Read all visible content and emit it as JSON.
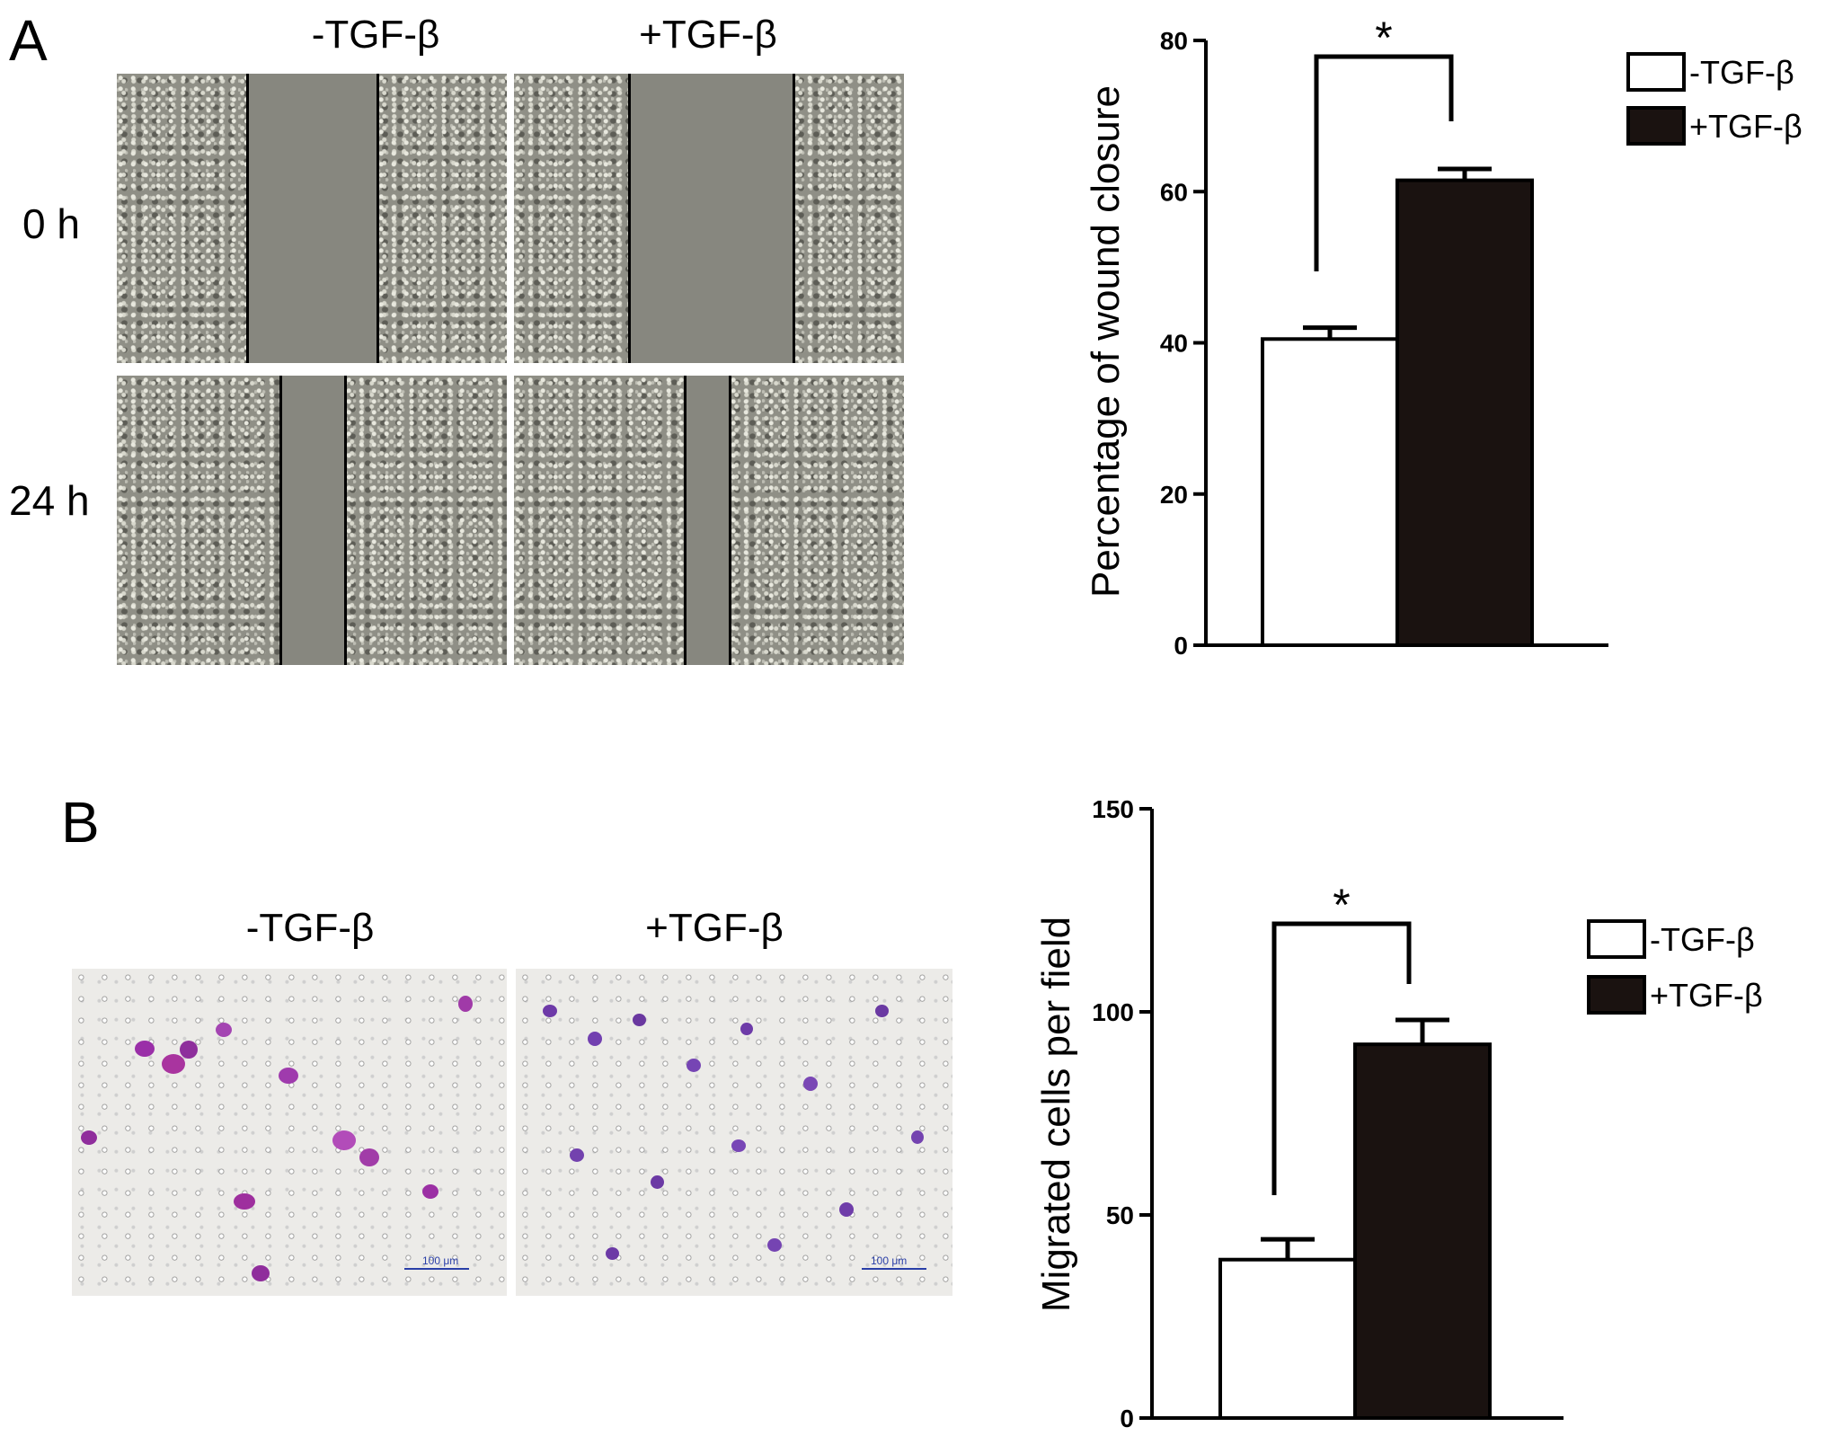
{
  "panels": [
    {
      "letter": "A",
      "columns": [
        "-TGF-β",
        "+TGF-β"
      ],
      "rows": [
        "0 h",
        "24 h"
      ]
    },
    {
      "letter": "B",
      "columns": [
        "-TGF-β",
        "+TGF-β"
      ],
      "scale_labels": [
        "100 μm",
        "100 μm"
      ]
    }
  ],
  "chart_data": [
    {
      "type": "bar",
      "categories": [
        "-TGF-β",
        "+TGF-β"
      ],
      "values": [
        40.5,
        61.5
      ],
      "errors": [
        1.5,
        1.5
      ],
      "colors": [
        "#ffffff",
        "#1a1210"
      ],
      "ylabel": "Percentage of wound closure",
      "xlabel": "",
      "ylim": [
        0,
        80
      ],
      "yticks": [
        0,
        20,
        40,
        60,
        80
      ],
      "legend": [
        "-TGF-β",
        "+TGF-β"
      ],
      "legend_position": "top-right",
      "significance": "*",
      "grid": false
    },
    {
      "type": "bar",
      "categories": [
        "-TGF-β",
        "+TGF-β"
      ],
      "values": [
        39,
        92
      ],
      "errors": [
        5,
        6
      ],
      "colors": [
        "#ffffff",
        "#1a1210"
      ],
      "ylabel": "Migrated cells per field",
      "xlabel": "",
      "ylim": [
        0,
        150
      ],
      "yticks": [
        0,
        50,
        100,
        150
      ],
      "legend": [
        "-TGF-β",
        "+TGF-β"
      ],
      "legend_position": "top-right",
      "significance": "*",
      "grid": false
    }
  ]
}
